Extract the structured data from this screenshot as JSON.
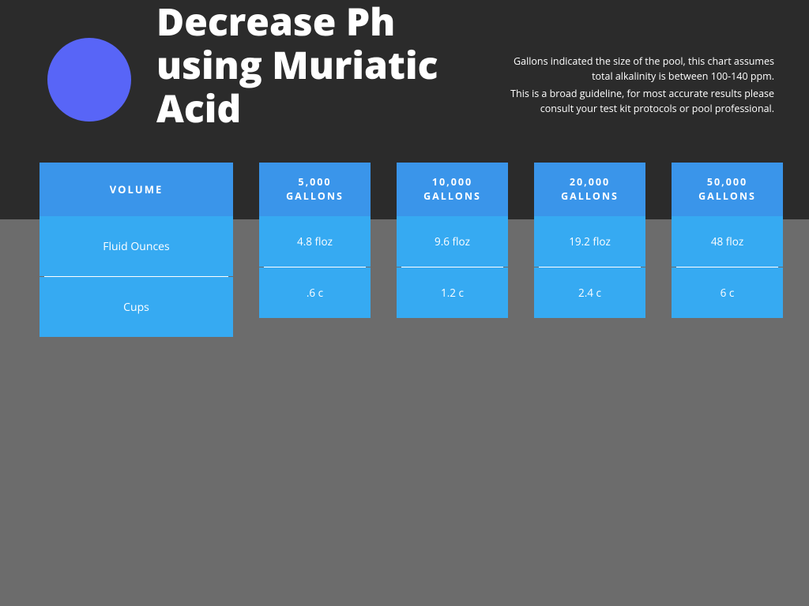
{
  "colors": {
    "bg_top": "#2b2b2b",
    "bg_bottom": "#6c6c6c",
    "accent_circle": "#5865f7",
    "card_head": "#3a95ea",
    "card_body": "#36aaf2",
    "text": "#ffffff"
  },
  "layout": {
    "title_fontsize": 48,
    "desc_fontsize": 12,
    "circle_diameter": 106
  },
  "title": "Decrease Ph using Muriatic Acid",
  "description": {
    "line1": "Gallons indicated the size of the pool, this chart assumes total alkalinity is between 100-140 ppm.",
    "line2": "This is a broad guideline, for most accurate results please consult your test kit protocols or pool professional."
  },
  "table": {
    "type": "table",
    "row_header": "VOLUME",
    "columns": [
      {
        "label_top": "5,000",
        "label_bottom": "GALLONS"
      },
      {
        "label_top": "10,000",
        "label_bottom": "GALLONS"
      },
      {
        "label_top": "20,000",
        "label_bottom": "GALLONS"
      },
      {
        "label_top": "50,000",
        "label_bottom": "GALLONS"
      }
    ],
    "rows": [
      {
        "label": "Fluid Ounces",
        "cells": [
          "4.8 floz",
          "9.6 floz",
          "19.2 floz",
          "48 floz"
        ]
      },
      {
        "label": "Cups",
        "cells": [
          ".6 c",
          "1.2 c",
          "2.4 c",
          "6 c"
        ]
      }
    ]
  }
}
